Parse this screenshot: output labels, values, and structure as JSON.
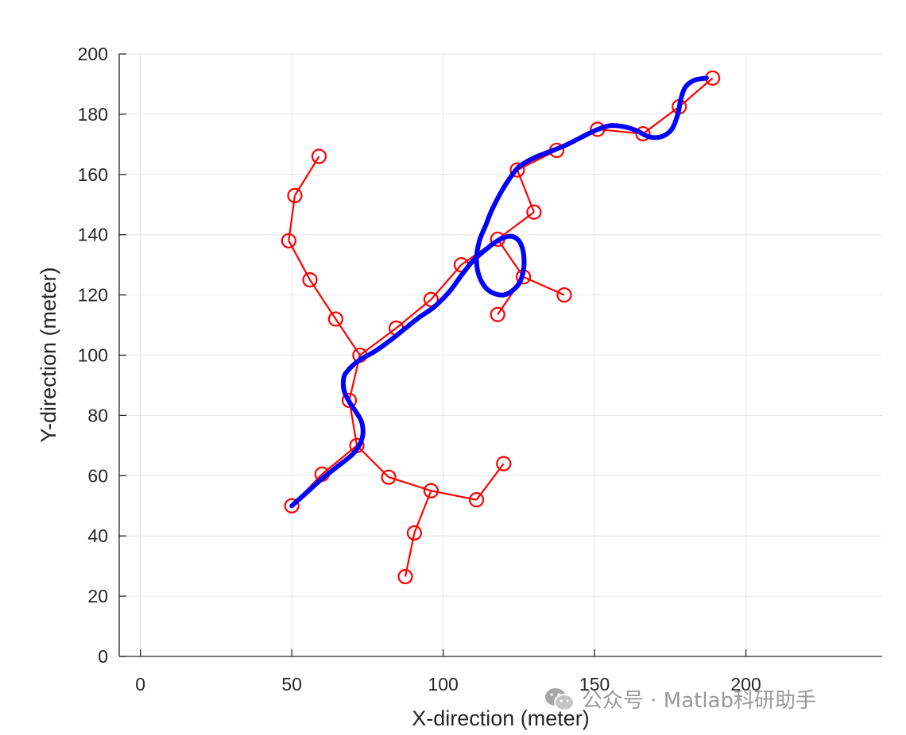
{
  "watermark": {
    "text": "公众号 · Matlab科研助手"
  },
  "chart_data": {
    "type": "line",
    "title": "",
    "xlabel": "X-direction (meter)",
    "ylabel": "Y-direction (meter)",
    "xlim": [
      -7,
      245
    ],
    "ylim": [
      0,
      200
    ],
    "xticks": [
      0,
      50,
      100,
      150,
      200
    ],
    "yticks": [
      0,
      20,
      40,
      60,
      80,
      100,
      120,
      140,
      160,
      180,
      200
    ],
    "grid": true,
    "colors": {
      "tree": "#ff0000",
      "path": "#0000ff",
      "axis": "#262626",
      "grid": "#e6e6e6"
    },
    "tree_edges": [
      [
        [
          50,
          50
        ],
        [
          60,
          60.5
        ]
      ],
      [
        [
          60,
          60.5
        ],
        [
          71.5,
          70
        ]
      ],
      [
        [
          71.5,
          70
        ],
        [
          69,
          85
        ]
      ],
      [
        [
          69,
          85
        ],
        [
          72.5,
          100
        ]
      ],
      [
        [
          72.5,
          100
        ],
        [
          64.5,
          112
        ]
      ],
      [
        [
          64.5,
          112
        ],
        [
          56,
          125
        ]
      ],
      [
        [
          56,
          125
        ],
        [
          49,
          138
        ]
      ],
      [
        [
          49,
          138
        ],
        [
          51,
          153
        ]
      ],
      [
        [
          51,
          153
        ],
        [
          59,
          166
        ]
      ],
      [
        [
          72.5,
          100
        ],
        [
          84.5,
          109
        ]
      ],
      [
        [
          84.5,
          109
        ],
        [
          96,
          118.5
        ]
      ],
      [
        [
          96,
          118.5
        ],
        [
          106,
          130
        ]
      ],
      [
        [
          106,
          130
        ],
        [
          118,
          138.5
        ]
      ],
      [
        [
          118,
          138.5
        ],
        [
          130,
          147.5
        ]
      ],
      [
        [
          130,
          147.5
        ],
        [
          124.5,
          161.5
        ]
      ],
      [
        [
          124.5,
          161.5
        ],
        [
          137.5,
          168
        ]
      ],
      [
        [
          137.5,
          168
        ],
        [
          151,
          175
        ]
      ],
      [
        [
          151,
          175
        ],
        [
          166,
          173.5
        ]
      ],
      [
        [
          166,
          173.5
        ],
        [
          178,
          182.5
        ]
      ],
      [
        [
          178,
          182.5
        ],
        [
          189,
          192
        ]
      ],
      [
        [
          118,
          138.5
        ],
        [
          126.5,
          126
        ]
      ],
      [
        [
          126.5,
          126
        ],
        [
          140,
          120
        ]
      ],
      [
        [
          126.5,
          126
        ],
        [
          118,
          113.5
        ]
      ],
      [
        [
          71.5,
          70
        ],
        [
          82,
          59.5
        ]
      ],
      [
        [
          82,
          59.5
        ],
        [
          96,
          55
        ]
      ],
      [
        [
          96,
          55
        ],
        [
          111,
          52
        ]
      ],
      [
        [
          111,
          52
        ],
        [
          120,
          64
        ]
      ],
      [
        [
          96,
          55
        ],
        [
          90.5,
          41
        ]
      ],
      [
        [
          90.5,
          41
        ],
        [
          87.5,
          26.5
        ]
      ]
    ],
    "tree_nodes": [
      [
        50,
        50
      ],
      [
        60,
        60.5
      ],
      [
        71.5,
        70
      ],
      [
        69,
        85
      ],
      [
        72.5,
        100
      ],
      [
        64.5,
        112
      ],
      [
        56,
        125
      ],
      [
        49,
        138
      ],
      [
        51,
        153
      ],
      [
        59,
        166
      ],
      [
        84.5,
        109
      ],
      [
        96,
        118.5
      ],
      [
        106,
        130
      ],
      [
        118,
        138.5
      ],
      [
        130,
        147.5
      ],
      [
        124.5,
        161.5
      ],
      [
        137.5,
        168
      ],
      [
        151,
        175
      ],
      [
        166,
        173.5
      ],
      [
        178,
        182.5
      ],
      [
        189,
        192
      ],
      [
        126.5,
        126
      ],
      [
        140,
        120
      ],
      [
        118,
        113.5
      ],
      [
        82,
        59.5
      ],
      [
        96,
        55
      ],
      [
        111,
        52
      ],
      [
        120,
        64
      ],
      [
        90.5,
        41
      ],
      [
        87.5,
        26.5
      ]
    ],
    "series": [
      {
        "values": [
          [
            50,
            50
          ],
          [
            55,
            54.5
          ],
          [
            60,
            59
          ],
          [
            65,
            63
          ],
          [
            70,
            67
          ],
          [
            72.5,
            70.5
          ],
          [
            73.5,
            74
          ],
          [
            73,
            78
          ],
          [
            71,
            81.5
          ],
          [
            69,
            84.5
          ],
          [
            67.5,
            87.5
          ],
          [
            67,
            90.5
          ],
          [
            67.5,
            93.5
          ],
          [
            69.5,
            96
          ],
          [
            72.5,
            98.5
          ],
          [
            77,
            101
          ],
          [
            82,
            104.5
          ],
          [
            87,
            108.5
          ],
          [
            92,
            112.5
          ],
          [
            97,
            116
          ],
          [
            102,
            121
          ],
          [
            106,
            126.5
          ],
          [
            110,
            131.5
          ],
          [
            114,
            135
          ],
          [
            118,
            138
          ],
          [
            122,
            139.5
          ],
          [
            125,
            138
          ],
          [
            126.5,
            134
          ],
          [
            126.5,
            128
          ],
          [
            124.5,
            123
          ],
          [
            120,
            120
          ],
          [
            115,
            121.5
          ],
          [
            112,
            126
          ],
          [
            111,
            132
          ],
          [
            112,
            138
          ],
          [
            114,
            143
          ],
          [
            116,
            148
          ],
          [
            118.5,
            153
          ],
          [
            121.5,
            158
          ],
          [
            125,
            162.5
          ],
          [
            130,
            165.5
          ],
          [
            135,
            167.5
          ],
          [
            140,
            169.5
          ],
          [
            145,
            172
          ],
          [
            150,
            174.5
          ],
          [
            155,
            176.2
          ],
          [
            160,
            175.8
          ],
          [
            164,
            174.5
          ],
          [
            168,
            172.5
          ],
          [
            172,
            172.5
          ],
          [
            175.5,
            175
          ],
          [
            177.5,
            180
          ],
          [
            178.5,
            185
          ],
          [
            180,
            189
          ],
          [
            183,
            191.3
          ],
          [
            187,
            192
          ]
        ]
      }
    ]
  }
}
